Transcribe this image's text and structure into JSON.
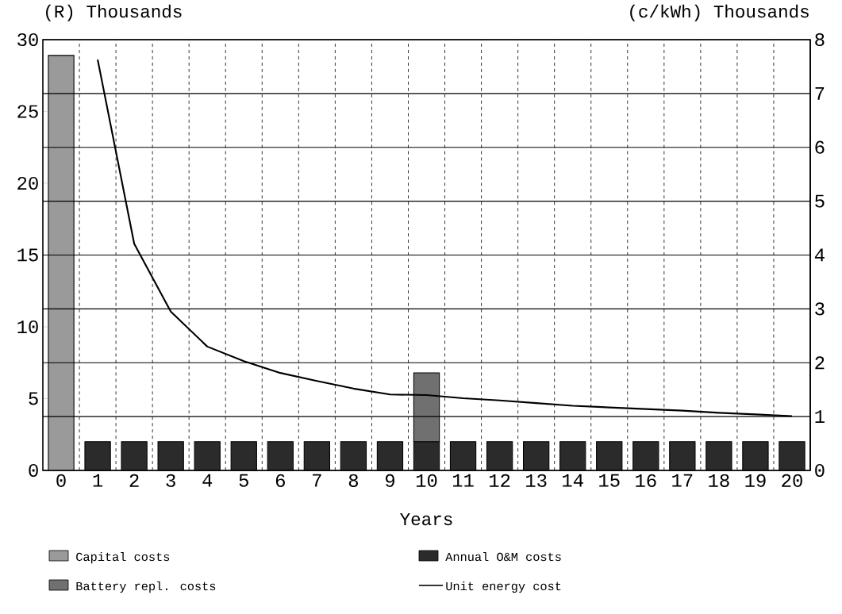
{
  "chart_data": {
    "type": "bar",
    "xlabel": "Years",
    "ylabel": "(R) Thousands",
    "y2label": "(c/kWh) Thousands",
    "categories": [
      "0",
      "1",
      "2",
      "3",
      "4",
      "5",
      "6",
      "7",
      "8",
      "9",
      "10",
      "11",
      "12",
      "13",
      "14",
      "15",
      "16",
      "17",
      "18",
      "19",
      "20"
    ],
    "stacked": true,
    "series": [
      {
        "name": "Capital costs",
        "color": "#9a9a9a",
        "values": [
          28.9,
          null,
          null,
          null,
          null,
          null,
          null,
          null,
          null,
          null,
          null,
          null,
          null,
          null,
          null,
          null,
          null,
          null,
          null,
          null,
          null
        ]
      },
      {
        "name": "Annual O&M costs",
        "color": "#2b2b2b",
        "values": [
          null,
          2,
          2,
          2,
          2,
          2,
          2,
          2,
          2,
          2,
          2,
          2,
          2,
          2,
          2,
          2,
          2,
          2,
          2,
          2,
          2
        ]
      },
      {
        "name": "Battery repl. costs",
        "color": "#707070",
        "values": [
          null,
          null,
          null,
          null,
          null,
          null,
          null,
          null,
          null,
          null,
          4.8,
          null,
          null,
          null,
          null,
          null,
          null,
          null,
          null,
          null,
          null
        ]
      },
      {
        "name": "Unit energy cost",
        "type": "line",
        "axis": "y2",
        "color": "#000000",
        "values": [
          null,
          7.63,
          4.21,
          2.95,
          2.3,
          2.03,
          1.81,
          1.66,
          1.52,
          1.41,
          1.4,
          1.34,
          1.3,
          1.25,
          1.2,
          1.17,
          1.14,
          1.11,
          1.07,
          1.04,
          1.01
        ]
      }
    ],
    "ylim": [
      0,
      30
    ],
    "yticks": [
      0,
      5,
      10,
      15,
      20,
      25,
      30
    ],
    "y2lim": [
      0,
      8
    ],
    "y2ticks": [
      0,
      1,
      2,
      3,
      4,
      5,
      6,
      7,
      8
    ],
    "grid": true,
    "legend": "bottom"
  }
}
